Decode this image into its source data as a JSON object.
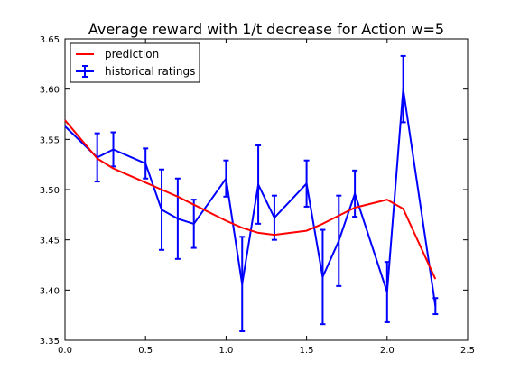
{
  "chart_data": {
    "type": "line",
    "title": "Average reward with 1/t decrease for Action w=5",
    "xlabel": "",
    "ylabel": "",
    "xlim": [
      0.0,
      2.5
    ],
    "ylim": [
      3.35,
      3.65
    ],
    "x_ticks": [
      "0.0",
      "0.5",
      "1.0",
      "1.5",
      "2.0",
      "2.5"
    ],
    "y_ticks": [
      "3.35",
      "3.40",
      "3.45",
      "3.50",
      "3.55",
      "3.60",
      "3.65"
    ],
    "grid": false,
    "legend_position": "top-left",
    "series": [
      {
        "name": "prediction",
        "color": "#ff0000",
        "x": [
          0.0,
          0.2,
          0.3,
          0.5,
          0.6,
          0.7,
          0.8,
          1.0,
          1.1,
          1.2,
          1.3,
          1.5,
          1.6,
          1.7,
          1.8,
          2.0,
          2.1,
          2.3
        ],
        "y": [
          3.569,
          3.531,
          3.521,
          3.507,
          3.5,
          3.493,
          3.485,
          3.469,
          3.462,
          3.457,
          3.455,
          3.459,
          3.466,
          3.474,
          3.482,
          3.49,
          3.481,
          3.411
        ]
      },
      {
        "name": "historical ratings",
        "color": "#0000ff",
        "errorbars": true,
        "x": [
          0.0,
          0.2,
          0.3,
          0.5,
          0.6,
          0.7,
          0.8,
          1.0,
          1.1,
          1.2,
          1.3,
          1.5,
          1.6,
          1.7,
          1.8,
          2.0,
          2.1,
          2.3
        ],
        "y": [
          3.563,
          3.532,
          3.54,
          3.526,
          3.48,
          3.471,
          3.466,
          3.511,
          3.406,
          3.505,
          3.472,
          3.506,
          3.413,
          3.449,
          3.496,
          3.398,
          3.6,
          3.384
        ],
        "yerr": [
          0.0,
          0.024,
          0.017,
          0.015,
          0.04,
          0.04,
          0.024,
          0.018,
          0.047,
          0.039,
          0.022,
          0.023,
          0.047,
          0.045,
          0.023,
          0.03,
          0.033,
          0.008
        ]
      }
    ]
  }
}
